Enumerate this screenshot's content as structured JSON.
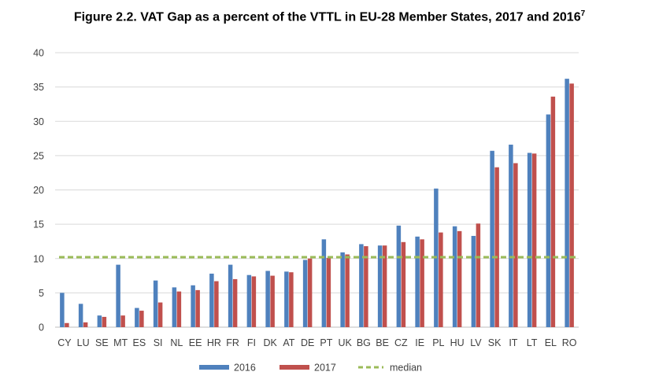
{
  "title": {
    "main": "Figure 2.2. VAT Gap as a percent of the VTTL in EU-28 Member States, 2017 and 2016",
    "footnote_mark": "7"
  },
  "chart_data": {
    "type": "bar",
    "title": "Figure 2.2. VAT Gap as a percent of the VTTL in EU-28 Member States, 2017 and 2016",
    "xlabel": "",
    "ylabel": "",
    "ylim": [
      0,
      40
    ],
    "yticks": [
      "0",
      "5",
      "10",
      "15",
      "20",
      "25",
      "30",
      "35",
      "40"
    ],
    "grid": true,
    "legend_position": "bottom",
    "categories": [
      "CY",
      "LU",
      "SE",
      "MT",
      "ES",
      "SI",
      "NL",
      "EE",
      "HR",
      "FR",
      "FI",
      "DK",
      "AT",
      "DE",
      "PT",
      "UK",
      "BG",
      "BE",
      "CZ",
      "IE",
      "PL",
      "HU",
      "LV",
      "SK",
      "IT",
      "LT",
      "EL",
      "RO"
    ],
    "series": [
      {
        "name": "2016",
        "color": "#4F81BD",
        "values": [
          5.0,
          3.4,
          1.7,
          9.1,
          2.8,
          6.8,
          5.8,
          6.1,
          7.8,
          9.1,
          7.6,
          8.2,
          8.1,
          9.8,
          12.8,
          10.9,
          12.1,
          11.9,
          14.8,
          13.2,
          20.2,
          14.7,
          13.3,
          25.7,
          26.6,
          25.4,
          31.0,
          36.2
        ]
      },
      {
        "name": "2017",
        "color": "#C0504D",
        "values": [
          0.6,
          0.7,
          1.5,
          1.7,
          2.4,
          3.6,
          5.2,
          5.4,
          6.7,
          7.0,
          7.4,
          7.5,
          8.0,
          10.0,
          10.1,
          10.6,
          11.8,
          11.9,
          12.4,
          12.8,
          13.8,
          14.0,
          15.1,
          23.3,
          23.9,
          25.3,
          33.6,
          35.5
        ]
      },
      {
        "name": "median",
        "color": "#9BBB59",
        "type": "line",
        "style": "dashed",
        "value": 10.2
      }
    ]
  }
}
